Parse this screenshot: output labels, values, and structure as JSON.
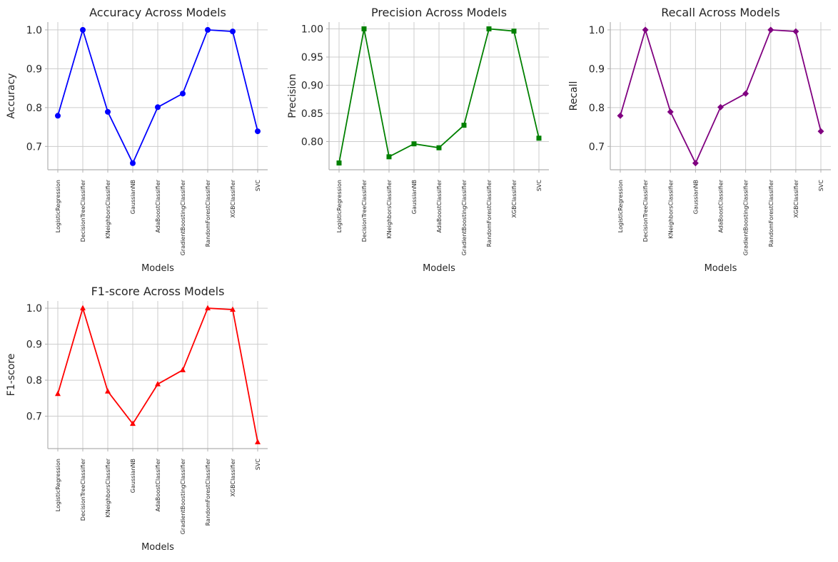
{
  "chart_data": [
    {
      "type": "line",
      "title": "Accuracy Across Models",
      "xlabel": "Models",
      "ylabel": "Accuracy",
      "categories": [
        "LogisticRegression",
        "DecisionTreeClassifier",
        "KNeighborsClassifier",
        "GaussianNB",
        "AdaBoostClassifier",
        "GradientBoostingClassifier",
        "RandomForestClassifier",
        "XGBClassifier",
        "SVC"
      ],
      "values": [
        0.779,
        1.0,
        0.789,
        0.657,
        0.801,
        0.836,
        1.0,
        0.996,
        0.739
      ],
      "yticks": [
        "0.7",
        "0.8",
        "0.9",
        "1.0"
      ],
      "ylim": [
        0.64,
        1.02
      ],
      "color": "#0000ff",
      "marker": "circle",
      "grid": true
    },
    {
      "type": "line",
      "title": "Precision Across Models",
      "xlabel": "Models",
      "ylabel": "Precision",
      "categories": [
        "LogisticRegression",
        "DecisionTreeClassifier",
        "KNeighborsClassifier",
        "GaussianNB",
        "AdaBoostClassifier",
        "GradientBoostingClassifier",
        "RandomForestClassifier",
        "XGBClassifier",
        "SVC"
      ],
      "values": [
        0.762,
        1.0,
        0.773,
        0.796,
        0.789,
        0.829,
        1.0,
        0.996,
        0.806
      ],
      "yticks": [
        "0.80",
        "0.85",
        "0.90",
        "0.95",
        "1.00"
      ],
      "ylim": [
        0.75,
        1.012
      ],
      "color": "#008000",
      "marker": "square",
      "grid": true
    },
    {
      "type": "line",
      "title": "Recall Across Models",
      "xlabel": "Models",
      "ylabel": "Recall",
      "categories": [
        "LogisticRegression",
        "DecisionTreeClassifier",
        "KNeighborsClassifier",
        "GaussianNB",
        "AdaBoostClassifier",
        "GradientBoostingClassifier",
        "RandomForestClassifier",
        "XGBClassifier",
        "SVC"
      ],
      "values": [
        0.779,
        1.0,
        0.789,
        0.657,
        0.801,
        0.836,
        1.0,
        0.996,
        0.739
      ],
      "yticks": [
        "0.7",
        "0.8",
        "0.9",
        "1.0"
      ],
      "ylim": [
        0.64,
        1.02
      ],
      "color": "#800080",
      "marker": "diamond",
      "grid": true
    },
    {
      "type": "line",
      "title": "F1-score Across Models",
      "xlabel": "Models",
      "ylabel": "F1-score",
      "categories": [
        "LogisticRegression",
        "DecisionTreeClassifier",
        "KNeighborsClassifier",
        "GaussianNB",
        "AdaBoostClassifier",
        "GradientBoostingClassifier",
        "RandomForestClassifier",
        "XGBClassifier",
        "SVC"
      ],
      "values": [
        0.762,
        1.0,
        0.769,
        0.679,
        0.789,
        0.828,
        1.0,
        0.996,
        0.628
      ],
      "yticks": [
        "0.7",
        "0.8",
        "0.9",
        "1.0"
      ],
      "ylim": [
        0.61,
        1.02
      ],
      "color": "#ff0000",
      "marker": "triangle",
      "grid": true
    }
  ]
}
